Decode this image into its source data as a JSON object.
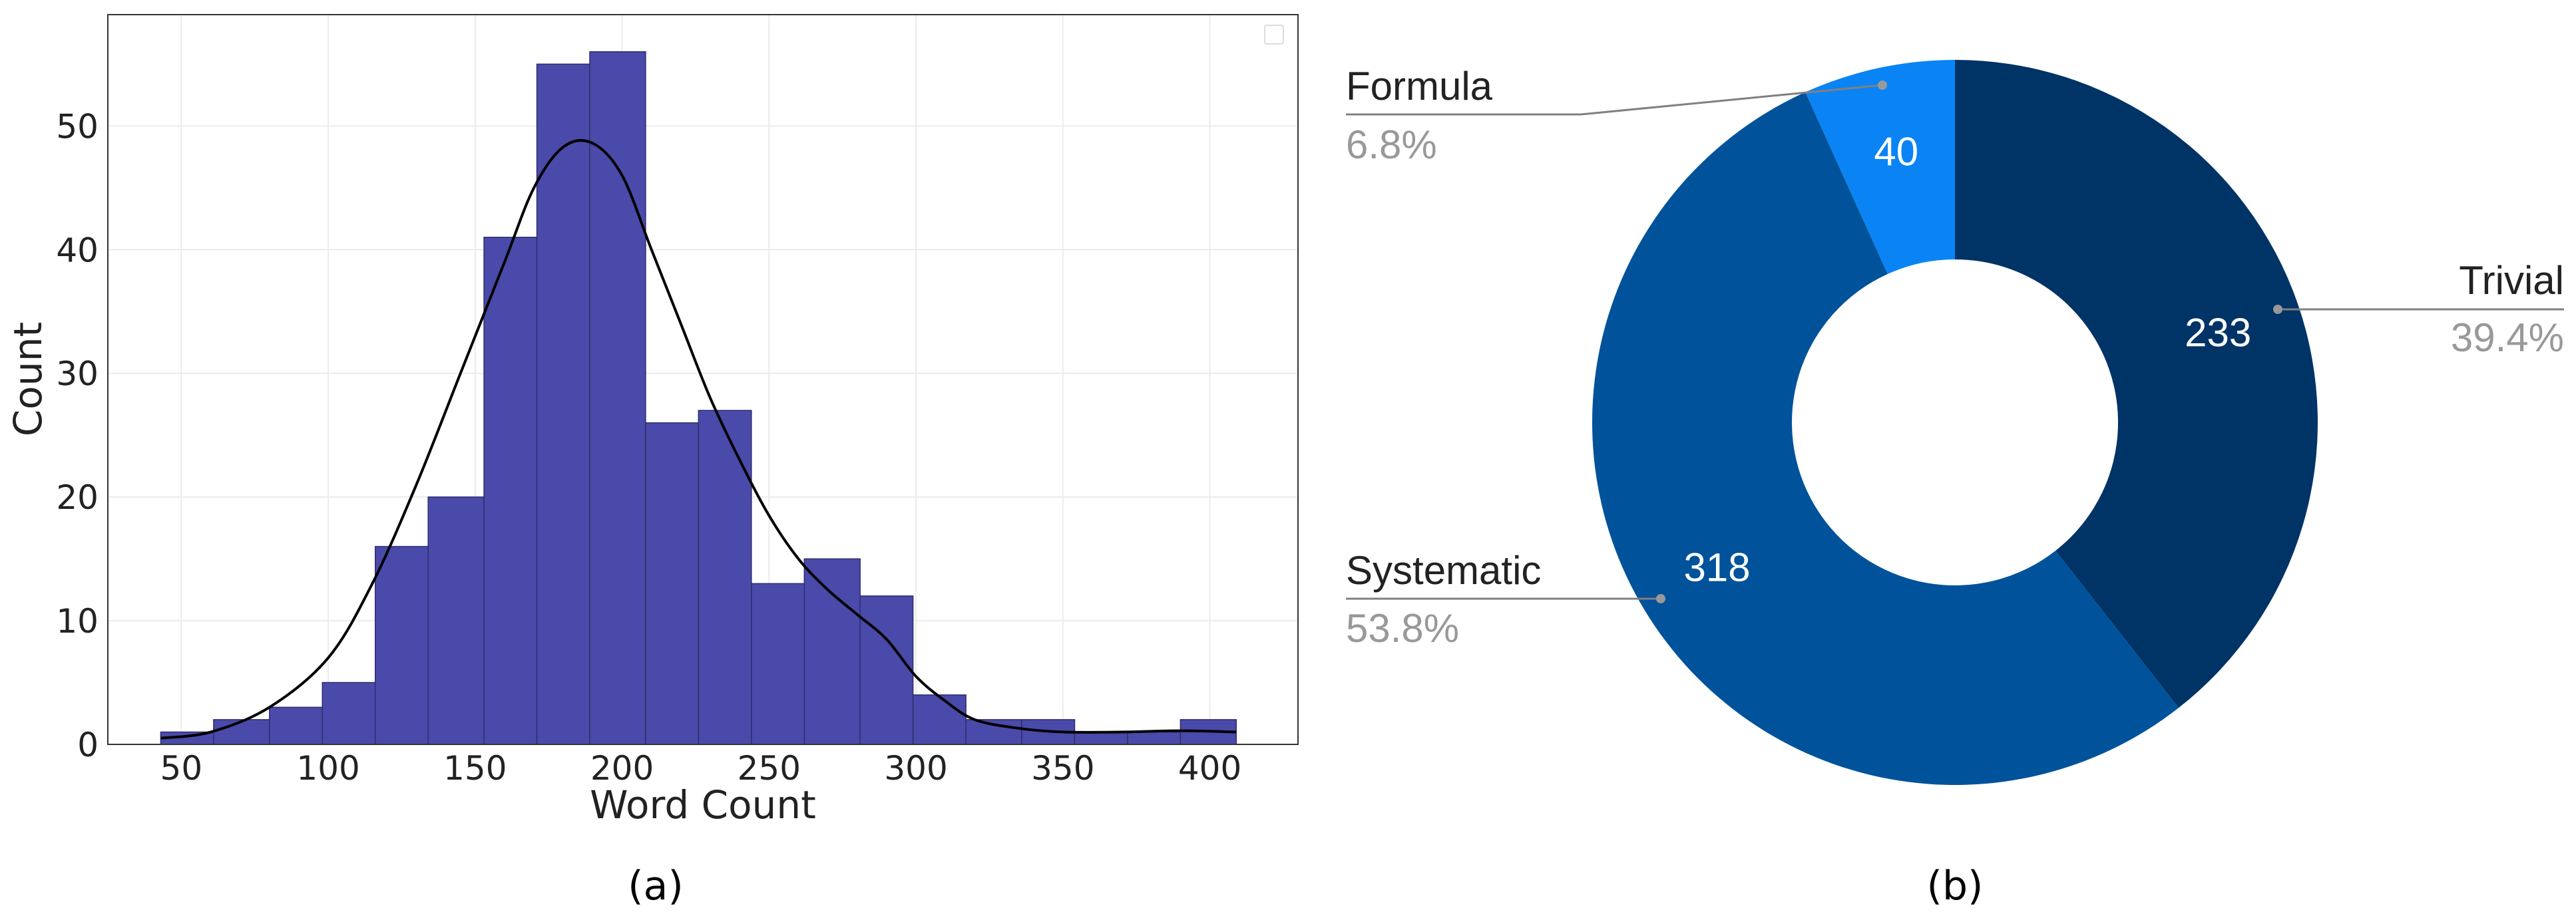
{
  "chart_data": [
    {
      "type": "bar",
      "subtitle": "(a)",
      "xlabel": "Word Count",
      "ylabel": "Count",
      "xlim": [
        25,
        430
      ],
      "ylim": [
        0,
        59
      ],
      "xticks": [
        "50",
        "100",
        "150",
        "200",
        "250",
        "300",
        "350",
        "400"
      ],
      "yticks": [
        "0",
        "10",
        "20",
        "30",
        "40",
        "50"
      ],
      "grid": true,
      "legend": "top-right (empty)",
      "bar_color": "#4A4AAA",
      "bins": [
        {
          "x0": 43,
          "x1": 61,
          "value": 1
        },
        {
          "x0": 61,
          "x1": 80,
          "value": 2
        },
        {
          "x0": 80,
          "x1": 98,
          "value": 3
        },
        {
          "x0": 98,
          "x1": 116,
          "value": 5
        },
        {
          "x0": 116,
          "x1": 134,
          "value": 16
        },
        {
          "x0": 134,
          "x1": 153,
          "value": 20
        },
        {
          "x0": 153,
          "x1": 171,
          "value": 41
        },
        {
          "x0": 171,
          "x1": 189,
          "value": 55
        },
        {
          "x0": 189,
          "x1": 208,
          "value": 56
        },
        {
          "x0": 208,
          "x1": 226,
          "value": 26
        },
        {
          "x0": 226,
          "x1": 244,
          "value": 27
        },
        {
          "x0": 244,
          "x1": 262,
          "value": 13
        },
        {
          "x0": 262,
          "x1": 281,
          "value": 15
        },
        {
          "x0": 281,
          "x1": 299,
          "value": 12
        },
        {
          "x0": 299,
          "x1": 317,
          "value": 4
        },
        {
          "x0": 317,
          "x1": 336,
          "value": 2
        },
        {
          "x0": 336,
          "x1": 354,
          "value": 2
        },
        {
          "x0": 354,
          "x1": 372,
          "value": 1
        },
        {
          "x0": 372,
          "x1": 390,
          "value": 1
        },
        {
          "x0": 390,
          "x1": 409,
          "value": 2
        }
      ],
      "kde": {
        "color": "#000000",
        "x": [
          43,
          60,
          80,
          100,
          115,
          130,
          145,
          160,
          170,
          180,
          190,
          200,
          210,
          220,
          230,
          240,
          250,
          260,
          270,
          280,
          290,
          300,
          310,
          320,
          335,
          350,
          370,
          390,
          409
        ],
        "y": [
          0.5,
          1,
          3,
          7,
          13,
          21,
          30,
          39,
          45,
          48.3,
          48.6,
          46,
          40,
          34,
          28,
          23,
          18.5,
          15,
          12.5,
          10.5,
          8.5,
          5.5,
          3.5,
          2,
          1.3,
          1,
          1,
          1.1,
          1
        ]
      }
    },
    {
      "type": "pie",
      "subtitle": "(b)",
      "donut": true,
      "slices": [
        {
          "label": "Trivial",
          "value": 233,
          "percent": "39.4%",
          "color": "#003366"
        },
        {
          "label": "Systematic",
          "value": 318,
          "percent": "53.8%",
          "color": "#00529B"
        },
        {
          "label": "Formula",
          "value": 40,
          "percent": "6.8%",
          "color": "#0A84F5"
        }
      ],
      "label_colors": {
        "name": "#222222",
        "percent": "#999999",
        "value": "#ffffff",
        "leader": "#808080"
      }
    }
  ]
}
